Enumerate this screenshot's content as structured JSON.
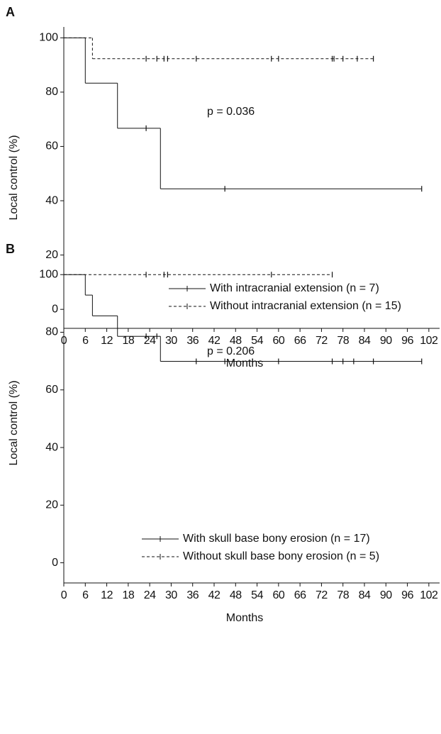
{
  "chart_data": [
    {
      "type": "step",
      "panel_label": "A",
      "ylabel": "Local control (%)",
      "xlabel": "Months",
      "annotation": "p = 0.036",
      "xlim": [
        0,
        105
      ],
      "ylim": [
        -7,
        104
      ],
      "xticks": [
        0,
        6,
        12,
        18,
        24,
        30,
        36,
        42,
        48,
        54,
        60,
        66,
        72,
        78,
        84,
        90,
        96,
        102
      ],
      "yticks": [
        0,
        20,
        40,
        60,
        80,
        100
      ],
      "legend": "lower right",
      "series": [
        {
          "name": "With intracranial extension (n = 7)",
          "color": "#111111",
          "dashed": false,
          "x": [
            0,
            6,
            15,
            27,
            100
          ],
          "values": [
            100,
            83.3,
            66.7,
            44.4,
            44.4
          ],
          "censor_x": [
            23,
            45,
            100
          ],
          "censor_values": [
            66.7,
            44.4,
            44.4
          ]
        },
        {
          "name": "Without intracranial extension (n = 15)",
          "color": "#111111",
          "dashed": true,
          "x": [
            0,
            8,
            86.5
          ],
          "values": [
            100,
            92.3,
            92.3
          ],
          "censor_x": [
            23,
            26,
            28,
            29,
            37,
            58,
            60,
            75,
            75.5,
            78,
            82,
            86.5
          ],
          "censor_values": [
            92.3,
            92.3,
            92.3,
            92.3,
            92.3,
            92.3,
            92.3,
            92.3,
            92.3,
            92.3,
            92.3,
            92.3
          ]
        }
      ]
    },
    {
      "type": "step",
      "panel_label": "B",
      "ylabel": "Local control (%)",
      "xlabel": "Months",
      "annotation": "p = 0.206",
      "xlim": [
        0,
        105
      ],
      "ylim": [
        -7,
        104
      ],
      "xticks": [
        0,
        6,
        12,
        18,
        24,
        30,
        36,
        42,
        48,
        54,
        60,
        66,
        72,
        78,
        84,
        90,
        96,
        102
      ],
      "yticks": [
        0,
        20,
        40,
        60,
        80,
        100
      ],
      "legend": "lower right",
      "series": [
        {
          "name": "With skull base bony erosion (n = 17)",
          "color": "#111111",
          "dashed": false,
          "x": [
            0,
            6,
            8,
            15,
            27,
            100
          ],
          "values": [
            100,
            92.9,
            85.7,
            78.6,
            69.9,
            69.9
          ],
          "censor_x": [
            23,
            26,
            37,
            45,
            60,
            75,
            78,
            81,
            86.5,
            100
          ],
          "censor_values": [
            78.6,
            78.6,
            69.9,
            69.9,
            69.9,
            69.9,
            69.9,
            69.9,
            69.9,
            69.9
          ]
        },
        {
          "name": "Without skull base bony erosion (n = 5)",
          "color": "#111111",
          "dashed": true,
          "x": [
            0,
            75
          ],
          "values": [
            100,
            100
          ],
          "censor_x": [
            23,
            28,
            29,
            58,
            75
          ],
          "censor_values": [
            100,
            100,
            100,
            100,
            100
          ]
        }
      ]
    }
  ]
}
